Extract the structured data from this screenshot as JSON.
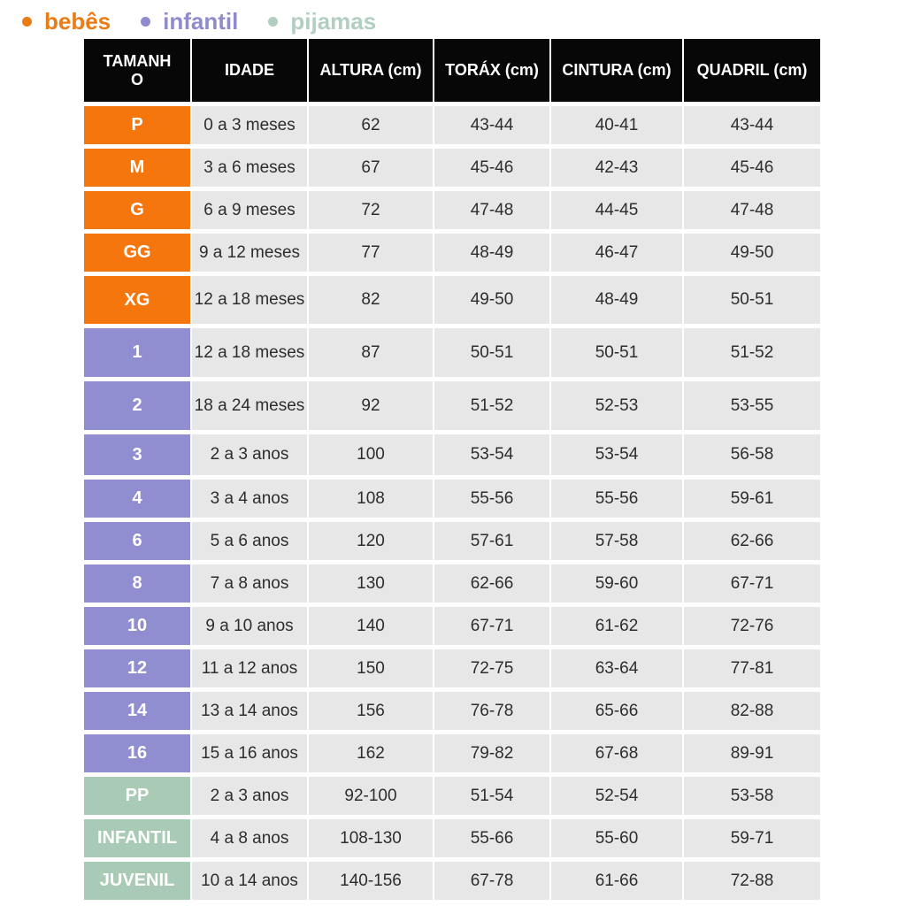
{
  "colors": {
    "bebes_row": "#f5760c",
    "infantil_row": "#918dd1",
    "pijamas_row": "#a9cbb5",
    "header_bg": "#070707",
    "header_text": "#ffffff",
    "cell_bg": "#e8e7e8",
    "cell_text": "#2d2d2d",
    "size_text": "#ffffff",
    "legend_bebes": "#e97c17",
    "legend_infantil": "#8f8bce",
    "legend_pijamas": "#b2cec1"
  },
  "legend": {
    "items": [
      {
        "id": "bebes",
        "label": "bebês",
        "color": "#e97c17"
      },
      {
        "id": "infantil",
        "label": "infantil",
        "color": "#8f8bce"
      },
      {
        "id": "pijamas",
        "label": "pijamas",
        "color": "#b2cec1"
      }
    ]
  },
  "chart_data": {
    "type": "table",
    "columns": [
      {
        "id": "tamanho",
        "label": "TAMANHO"
      },
      {
        "id": "idade",
        "label": "IDADE"
      },
      {
        "id": "altura",
        "label": "ALTURA (cm)"
      },
      {
        "id": "torax",
        "label": "TORÁX (cm)"
      },
      {
        "id": "cintura",
        "label": "CINTURA (cm)"
      },
      {
        "id": "quadril",
        "label": "QUADRIL (cm)"
      }
    ],
    "rows": [
      {
        "group": "bebes",
        "size": "P",
        "idade": "0 a 3 meses",
        "altura": "62",
        "torax": "43-44",
        "cintura": "40-41",
        "quadril": "43-44"
      },
      {
        "group": "bebes",
        "size": "M",
        "idade": "3 a 6 meses",
        "altura": "67",
        "torax": "45-46",
        "cintura": "42-43",
        "quadril": "45-46"
      },
      {
        "group": "bebes",
        "size": "G",
        "idade": "6 a 9 meses",
        "altura": "72",
        "torax": "47-48",
        "cintura": "44-45",
        "quadril": "47-48"
      },
      {
        "group": "bebes",
        "size": "GG",
        "idade": "9 a 12 meses",
        "altura": "77",
        "torax": "48-49",
        "cintura": "46-47",
        "quadril": "49-50"
      },
      {
        "group": "bebes",
        "size": "XG",
        "idade": "12 a 18 meses",
        "altura": "82",
        "torax": "49-50",
        "cintura": "48-49",
        "quadril": "50-51"
      },
      {
        "group": "infantil",
        "size": "1",
        "idade": "12 a 18 meses",
        "altura": "87",
        "torax": "50-51",
        "cintura": "50-51",
        "quadril": "51-52"
      },
      {
        "group": "infantil",
        "size": "2",
        "idade": "18 a 24 meses",
        "altura": "92",
        "torax": "51-52",
        "cintura": "52-53",
        "quadril": "53-55"
      },
      {
        "group": "infantil",
        "size": "3",
        "idade": "2 a 3 anos",
        "altura": "100",
        "torax": "53-54",
        "cintura": "53-54",
        "quadril": "56-58"
      },
      {
        "group": "infantil",
        "size": "4",
        "idade": "3 a 4 anos",
        "altura": "108",
        "torax": "55-56",
        "cintura": "55-56",
        "quadril": "59-61"
      },
      {
        "group": "infantil",
        "size": "6",
        "idade": "5 a 6 anos",
        "altura": "120",
        "torax": "57-61",
        "cintura": "57-58",
        "quadril": "62-66"
      },
      {
        "group": "infantil",
        "size": "8",
        "idade": "7 a 8 anos",
        "altura": "130",
        "torax": "62-66",
        "cintura": "59-60",
        "quadril": "67-71"
      },
      {
        "group": "infantil",
        "size": "10",
        "idade": "9 a 10 anos",
        "altura": "140",
        "torax": "67-71",
        "cintura": "61-62",
        "quadril": "72-76"
      },
      {
        "group": "infantil",
        "size": "12",
        "idade": "11 a 12 anos",
        "altura": "150",
        "torax": "72-75",
        "cintura": "63-64",
        "quadril": "77-81"
      },
      {
        "group": "infantil",
        "size": "14",
        "idade": "13 a 14 anos",
        "altura": "156",
        "torax": "76-78",
        "cintura": "65-66",
        "quadril": "82-88"
      },
      {
        "group": "infantil",
        "size": "16",
        "idade": "15 a 16 anos",
        "altura": "162",
        "torax": "79-82",
        "cintura": "67-68",
        "quadril": "89-91"
      },
      {
        "group": "pijamas",
        "size": "PP",
        "idade": "2 a 3 anos",
        "altura": "92-100",
        "torax": "51-54",
        "cintura": "52-54",
        "quadril": "53-58"
      },
      {
        "group": "pijamas",
        "size": "INFANTIL",
        "idade": "4 a 8 anos",
        "altura": "108-130",
        "torax": "55-66",
        "cintura": "55-60",
        "quadril": "59-71"
      },
      {
        "group": "pijamas",
        "size": "JUVENIL",
        "idade": "10 a 14 anos",
        "altura": "140-156",
        "torax": "67-78",
        "cintura": "61-66",
        "quadril": "72-88"
      }
    ]
  }
}
